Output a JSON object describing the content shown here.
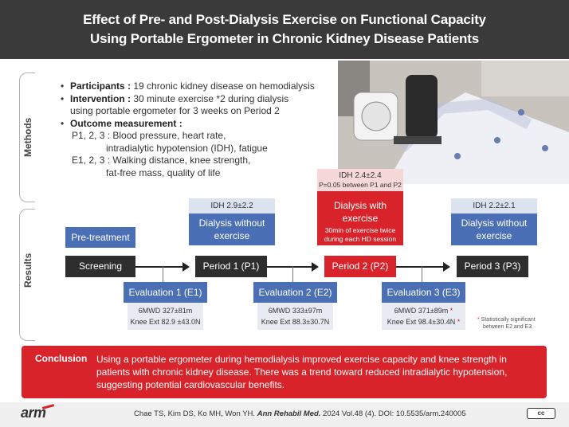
{
  "header": {
    "title_line1": "Effect of Pre- and Post-Dialysis Exercise on Functional Capacity",
    "title_line2": "Using Portable Ergometer in Chronic Kidney Disease Patients"
  },
  "sections": {
    "methods_label": "Methods",
    "results_label": "Results"
  },
  "methods": {
    "participants_label": "Participants :",
    "participants_text": "19 chronic kidney disease on hemodialysis",
    "intervention_label": "Intervention :",
    "intervention_text": "30 minute exercise *2 during dialysis",
    "intervention_text2": "using portable ergometer for 3 weeks on Period 2",
    "outcome_label": "Outcome measurement :",
    "p_line1": "P1, 2, 3 : Blood pressure, heart rate,",
    "p_line2": "intradialytic hypotension (IDH), fatigue",
    "e_line1": "E1, 2, 3 : Walking distance, knee strength,",
    "e_line2": "fat-free mass, quality of life"
  },
  "results": {
    "pre_treatment": "Pre-treatment",
    "screening": "Screening",
    "period1": "Period 1 (P1)",
    "period2": "Period 2 (P2)",
    "period3": "Period 3 (P3)",
    "idh_p1": "IDH 2.9±2.2",
    "idh_p2": "IDH 2.4±2.4",
    "idh_p2_note": "P=0.05 between P1 and P2",
    "idh_p3": "IDH 2.2±2.1",
    "dialysis_without_1": "Dialysis without",
    "dialysis_without_2": "exercise",
    "dialysis_with_1": "Dialysis with",
    "dialysis_with_2": "exercise",
    "dialysis_with_note1": "30min of exercise twice",
    "dialysis_with_note2": "during each HD session",
    "e1_label": "Evaluation 1 (E1)",
    "e2_label": "Evaluation 2 (E2)",
    "e3_label": "Evaluation 3 (E3)",
    "e1_6mwd": "6MWD 327±81m",
    "e1_knee": "Knee Ext 82.9 ±43.0N",
    "e2_6mwd": "6MWD 333±97m",
    "e2_knee": "Knee Ext 88.3±30.7N",
    "e3_6mwd": "6MWD 371±89m",
    "e3_knee": "Knee Ext 98.4±30.4N",
    "star": "*",
    "footnote1": "Statistically significant",
    "footnote2": "between E2 and E3"
  },
  "conclusion": {
    "label": "Conclusion",
    "text": "Using a portable ergometer during hemodialysis improved exercise capacity and knee strength in patients with chronic kidney disease. There was a trend toward reduced intradialytic hypotension, suggesting potential cardiovascular benefits."
  },
  "footer": {
    "logo": "arm",
    "authors": "Chae TS, Kim DS, Ko MH, Won YH.",
    "journal": "Ann Rehabil Med.",
    "details": "2024 Vol.48 (4). DOI: 10.5535/arm.240005",
    "license": "cc"
  },
  "colors": {
    "header_bg": "#3a3a3a",
    "accent_red": "#d9232a",
    "accent_blue": "#4a6fb5",
    "dark_box": "#2e2e2e"
  }
}
